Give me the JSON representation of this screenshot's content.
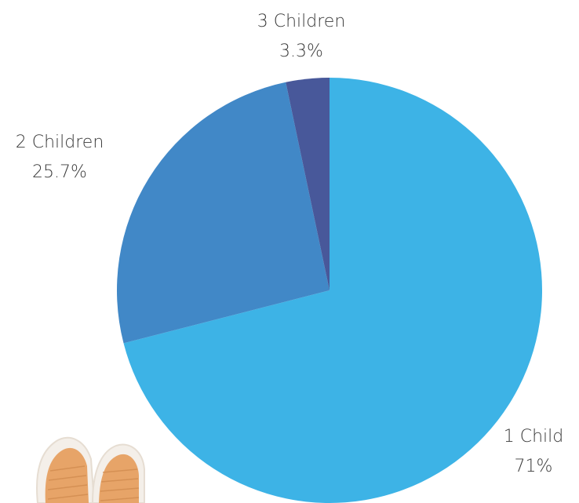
{
  "chart_data": {
    "type": "pie",
    "title": "",
    "slices": [
      {
        "label": "1 Child",
        "value_label": "71%",
        "value": 71.0,
        "color": "#3db3e6"
      },
      {
        "label": "2 Children",
        "value_label": "25.7%",
        "value": 25.7,
        "color": "#4188c7"
      },
      {
        "label": "3 Children",
        "value_label": "3.3%",
        "value": 3.3,
        "color": "#48589a"
      }
    ],
    "start_angle_deg": 0,
    "direction": "clockwise",
    "legend": "none"
  },
  "decor": {
    "shoes_icon": "baby-shoes-icon",
    "shoe_color": "#e7a468",
    "shoe_rim_color": "#f4efe9"
  }
}
